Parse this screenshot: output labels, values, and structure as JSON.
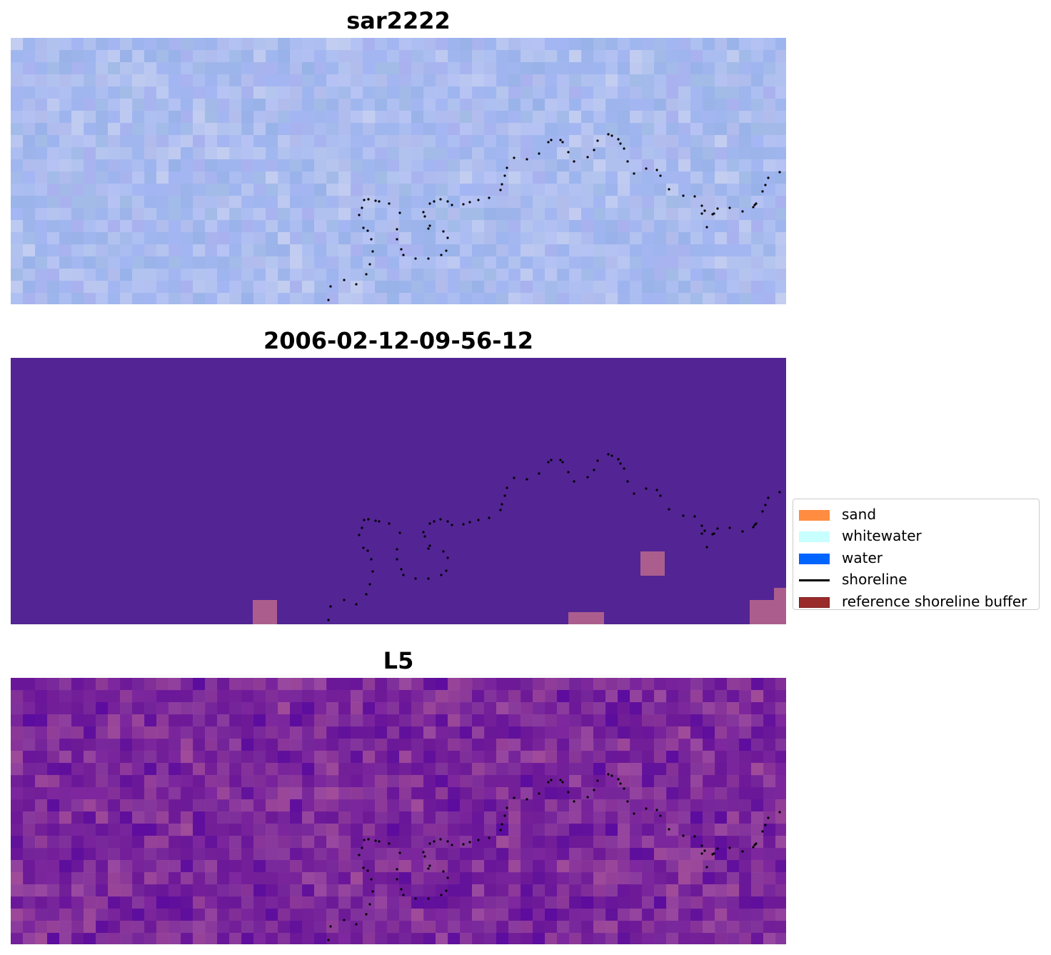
{
  "panels": [
    {
      "title": "sar2222",
      "base_color": "#a6b9f0",
      "palette": [
        "#9db4ee",
        "#a3b5f2",
        "#aebff1",
        "#b5c5ee",
        "#98b2e8",
        "#a9b1ee",
        "#b7c3f3",
        "#a2bbe6",
        "#c3cdf0",
        "#b3bdec"
      ]
    },
    {
      "title": "2006-02-12-09-56-12",
      "base_color": "#532494",
      "palette": [
        "#b0628c"
      ]
    },
    {
      "title": "L5",
      "base_color": "#6e1c96",
      "palette": [
        "#6e1a98",
        "#7a2a9c",
        "#8a3c9e",
        "#6a169a",
        "#9a4aa0",
        "#7e289e",
        "#5c0c9e",
        "#8e3a9a",
        "#a04c9a",
        "#742099"
      ]
    }
  ],
  "legend": {
    "items": [
      {
        "label": "sand",
        "color": "#ff8c40",
        "kind": "patch"
      },
      {
        "label": "whitewater",
        "color": "#c8ffff",
        "kind": "patch"
      },
      {
        "label": "water",
        "color": "#0064ff",
        "kind": "patch"
      },
      {
        "label": "shoreline",
        "color": "#000000",
        "kind": "line"
      },
      {
        "label": "reference shoreline buffer",
        "color": "#9a2b2b",
        "kind": "patch"
      }
    ]
  },
  "shoreline": {
    "color": "#000000",
    "points": [
      [
        445,
        367
      ],
      [
        448,
        348
      ],
      [
        467,
        339
      ],
      [
        484,
        345
      ],
      [
        498,
        331
      ],
      [
        503,
        317
      ],
      [
        507,
        299
      ],
      [
        505,
        282
      ],
      [
        500,
        270
      ],
      [
        494,
        266
      ],
      [
        488,
        248
      ],
      [
        492,
        238
      ],
      [
        495,
        227
      ],
      [
        501,
        226
      ],
      [
        511,
        228
      ],
      [
        516,
        229
      ],
      [
        530,
        232
      ],
      [
        545,
        245
      ],
      [
        541,
        268
      ],
      [
        541,
        282
      ],
      [
        547,
        296
      ],
      [
        550,
        304
      ],
      [
        567,
        309
      ],
      [
        585,
        309
      ],
      [
        603,
        304
      ],
      [
        610,
        298
      ],
      [
        612,
        280
      ],
      [
        606,
        271
      ],
      [
        587,
        263
      ],
      [
        585,
        267
      ],
      [
        580,
        250
      ],
      [
        578,
        244
      ],
      [
        587,
        232
      ],
      [
        593,
        229
      ],
      [
        602,
        226
      ],
      [
        612,
        229
      ],
      [
        618,
        234
      ],
      [
        634,
        233
      ],
      [
        643,
        230
      ],
      [
        655,
        227
      ],
      [
        670,
        224
      ],
      [
        686,
        213
      ],
      [
        688,
        205
      ],
      [
        692,
        193
      ],
      [
        695,
        182
      ],
      [
        705,
        168
      ],
      [
        723,
        170
      ],
      [
        740,
        162
      ],
      [
        753,
        146
      ],
      [
        757,
        143
      ],
      [
        770,
        143
      ],
      [
        773,
        146
      ],
      [
        781,
        160
      ],
      [
        789,
        173
      ],
      [
        808,
        167
      ],
      [
        817,
        157
      ],
      [
        822,
        144
      ],
      [
        837,
        135
      ],
      [
        842,
        137
      ],
      [
        851,
        142
      ],
      [
        854,
        148
      ],
      [
        859,
        155
      ],
      [
        864,
        173
      ],
      [
        873,
        190
      ],
      [
        890,
        183
      ],
      [
        905,
        185
      ],
      [
        910,
        193
      ],
      [
        922,
        212
      ],
      [
        942,
        221
      ],
      [
        958,
        222
      ],
      [
        968,
        235
      ],
      [
        972,
        242
      ],
      [
        968,
        246
      ],
      [
        983,
        247
      ],
      [
        975,
        265
      ],
      [
        985,
        246
      ],
      [
        990,
        239
      ],
      [
        1007,
        238
      ],
      [
        1025,
        243
      ],
      [
        1040,
        237
      ],
      [
        1042,
        234
      ],
      [
        1044,
        232
      ],
      [
        1053,
        215
      ],
      [
        1057,
        206
      ],
      [
        1061,
        196
      ],
      [
        1077,
        188
      ]
    ]
  }
}
